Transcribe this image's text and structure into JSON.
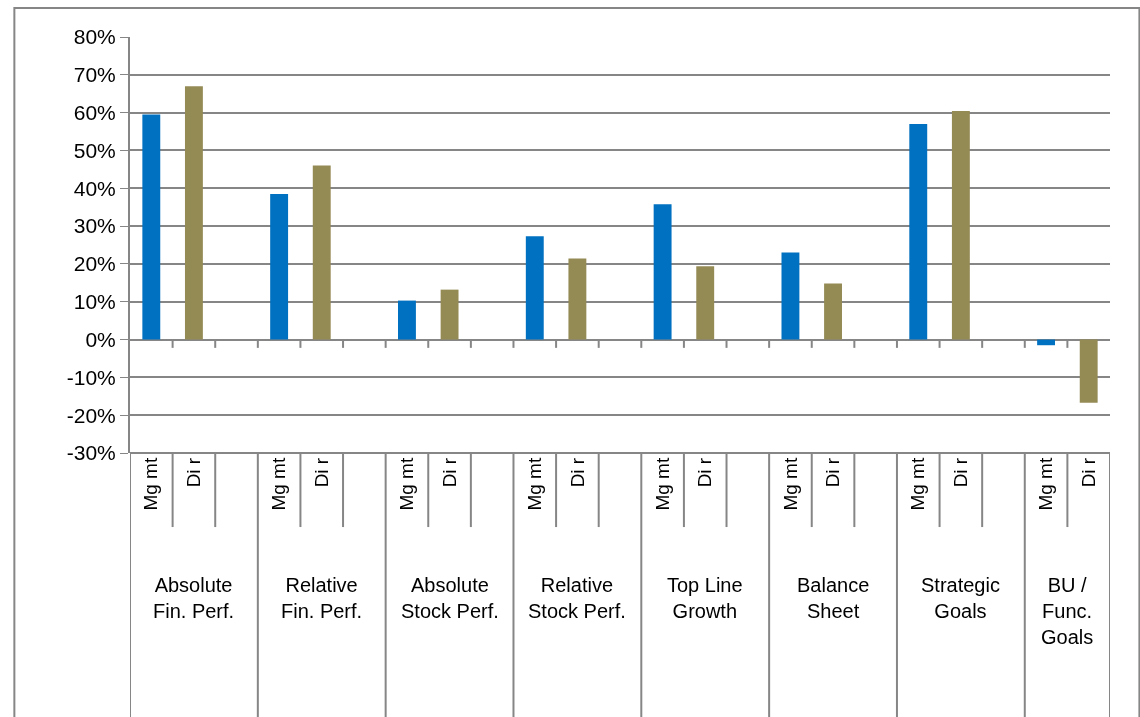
{
  "chart_data": {
    "type": "bar",
    "categories": [
      "Mg mt",
      "Di r",
      null,
      "Mg mt",
      "Di r",
      null,
      "Mg mt",
      "Di r",
      null,
      "Mg mt",
      "Di r",
      null,
      "Mg mt",
      "Di r",
      null,
      "Mg mt",
      "Di r",
      null,
      "Mg mt",
      "Di r",
      null,
      "Mg mt",
      "Di r"
    ],
    "series": [
      {
        "color": "#0070c0",
        "values": [
          59.5,
          null,
          null,
          38.5,
          null,
          null,
          10.3,
          null,
          null,
          27.3,
          null,
          null,
          35.8,
          null,
          null,
          23,
          null,
          null,
          57,
          null,
          null,
          -1.5,
          null
        ]
      },
      {
        "color": "#948a54",
        "values": [
          null,
          67,
          null,
          null,
          46,
          null,
          null,
          13.2,
          null,
          null,
          21.4,
          null,
          null,
          19.4,
          null,
          null,
          14.8,
          null,
          null,
          60.4,
          null,
          null,
          -16.7
        ]
      }
    ],
    "annotations": [
      "Absolute\nFin. Perf.",
      "Relative\nFin. Perf.",
      "Absolute\nStock Perf.",
      "Relative\nStock Perf.",
      "Top Line\nGrowth",
      "Balance\nSheet",
      "Strategic\nGoals",
      "BU /\nFunc.\nGoals"
    ],
    "ylim": [
      -30,
      80
    ],
    "yticks": [
      {
        "value": -30,
        "label": "-30%"
      },
      {
        "value": -20,
        "label": "-20%"
      },
      {
        "value": -10,
        "label": "-10%"
      },
      {
        "value": 0,
        "label": "0%"
      },
      {
        "value": 10,
        "label": "10%"
      },
      {
        "value": 20,
        "label": "20%"
      },
      {
        "value": 30,
        "label": "30%"
      },
      {
        "value": 40,
        "label": "40%"
      },
      {
        "value": 50,
        "label": "50%"
      },
      {
        "value": 60,
        "label": "60%"
      },
      {
        "value": 70,
        "label": "70%"
      },
      {
        "value": 80,
        "label": "80%"
      }
    ],
    "grid": "y",
    "legend": false
  }
}
